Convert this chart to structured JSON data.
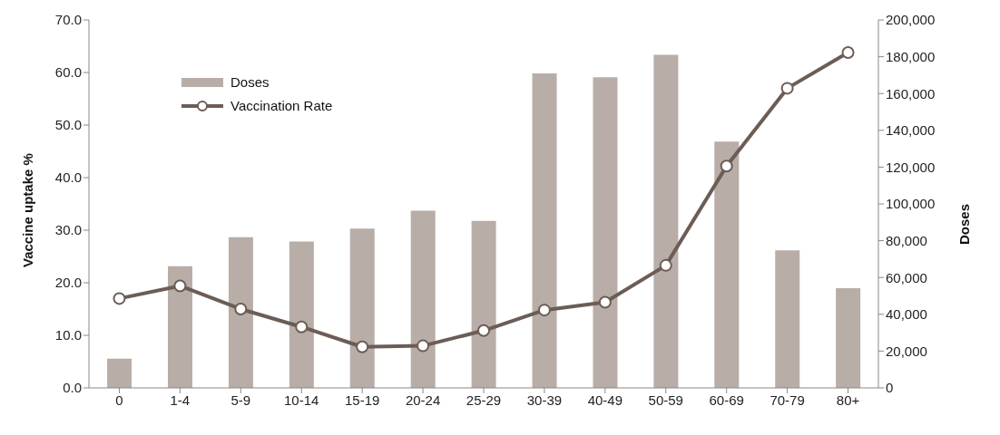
{
  "chart_data": {
    "type": "bar",
    "ylabel": "Vaccine uptake %",
    "y2label": "Doses",
    "categories": [
      "0",
      "1-4",
      "5-9",
      "10-14",
      "15-19",
      "20-24",
      "25-29",
      "30-39",
      "40-49",
      "50-59",
      "60-69",
      "70-79",
      "80+"
    ],
    "series": [
      {
        "name": "Doses",
        "axis": "y2",
        "color": "#b8ada7",
        "values": [
          15900,
          66100,
          81900,
          79500,
          86600,
          96300,
          90800,
          170900,
          168900,
          181000,
          133900,
          74700,
          54200
        ]
      },
      {
        "name": "Vaccination Rate",
        "type": "line",
        "color": "#6b5d55",
        "marker": "circle",
        "values": [
          17.0,
          19.4,
          15.0,
          11.6,
          7.8,
          8.0,
          10.9,
          14.8,
          16.3,
          23.3,
          42.2,
          57.0,
          63.8
        ]
      }
    ],
    "ylim": [
      0,
      70
    ],
    "yticks": [
      {
        "value": 0,
        "label": "0.0"
      },
      {
        "value": 10,
        "label": "10.0"
      },
      {
        "value": 20,
        "label": "20.0"
      },
      {
        "value": 30,
        "label": "30.0"
      },
      {
        "value": 40,
        "label": "40.0"
      },
      {
        "value": 50,
        "label": "50.0"
      },
      {
        "value": 60,
        "label": "60.0"
      },
      {
        "value": 70,
        "label": "70.0"
      }
    ],
    "y2lim": [
      0,
      200000
    ],
    "y2ticks": [
      0,
      {
        "value": 20000,
        "label": "20,000"
      },
      {
        "value": 40000,
        "label": "40,000"
      },
      {
        "value": 60000,
        "label": "60,000"
      },
      {
        "value": 80000,
        "label": "80,000"
      },
      {
        "value": 100000,
        "label": "100,000"
      },
      {
        "value": 120000,
        "label": "120,000"
      },
      {
        "value": 140000,
        "label": "140,000"
      },
      {
        "value": 160000,
        "label": "160,000"
      },
      {
        "value": 180000,
        "label": "180,000"
      },
      {
        "value": 200000,
        "label": "200,000"
      }
    ],
    "grid": false,
    "legend": "top left"
  }
}
